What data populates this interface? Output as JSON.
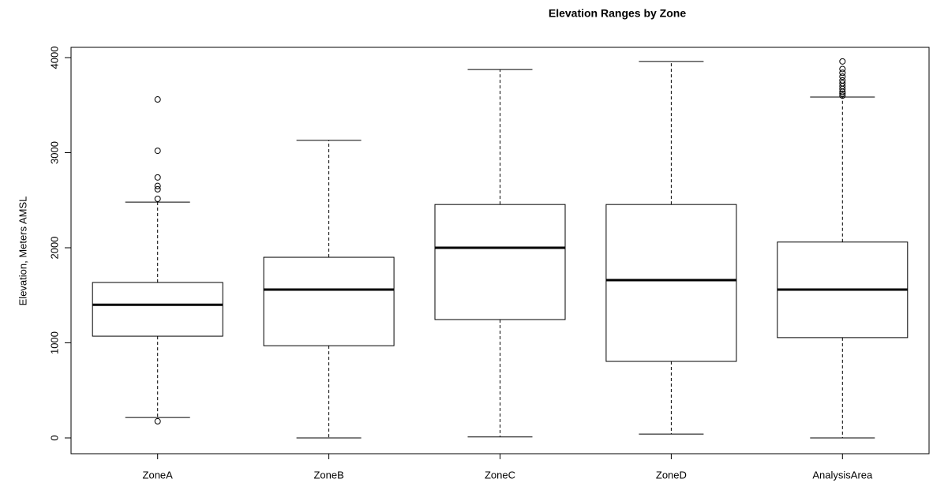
{
  "chart_data": {
    "type": "box",
    "title": "Elevation Ranges by Zone",
    "y_label": "Elevation, Meters AMSL",
    "categories": [
      "ZoneA",
      "ZoneB",
      "ZoneC",
      "ZoneD",
      "AnalysisArea"
    ],
    "boxes": [
      {
        "min": 215,
        "q1": 1070,
        "median": 1400,
        "q3": 1635,
        "max": 2480,
        "outliers": [
          3560,
          3020,
          2740,
          2650,
          2615,
          2515,
          175
        ]
      },
      {
        "min": 0,
        "q1": 970,
        "median": 1560,
        "q3": 1900,
        "max": 3130,
        "outliers": []
      },
      {
        "min": 10,
        "q1": 1245,
        "median": 2000,
        "q3": 2455,
        "max": 3875,
        "outliers": []
      },
      {
        "min": 40,
        "q1": 805,
        "median": 1660,
        "q3": 2455,
        "max": 3960,
        "outliers": []
      },
      {
        "min": 0,
        "q1": 1055,
        "median": 1560,
        "q3": 2060,
        "max": 3585,
        "outliers": [
          3960,
          3880,
          3840,
          3800,
          3760,
          3730,
          3700,
          3670,
          3640,
          3620,
          3600
        ]
      }
    ],
    "color": "#000000",
    "ylim": [
      -166,
      4108
    ],
    "yticks": [
      0,
      1000,
      2000,
      3000,
      4000
    ]
  }
}
